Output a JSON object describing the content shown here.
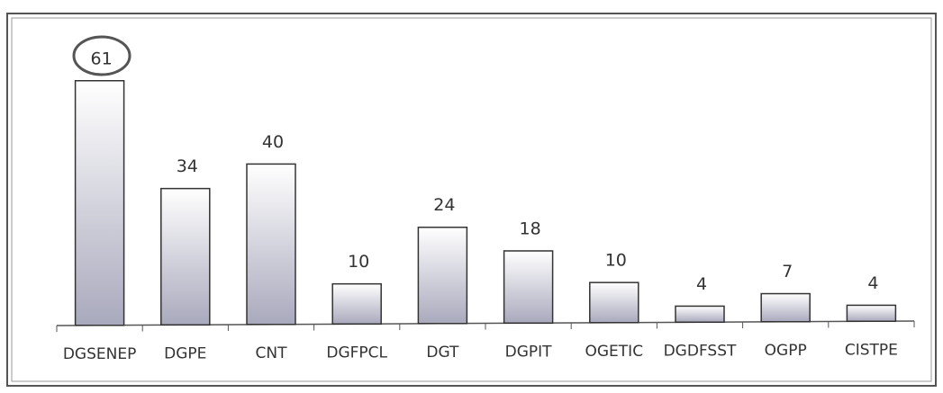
{
  "chart_data": {
    "type": "bar",
    "categories": [
      "DGSENEP",
      "DGPE",
      "CNT",
      "DGFPCL",
      "DGT",
      "DGPIT",
      "OGETIC",
      "DGDFSST",
      "OGPP",
      "CISTPE"
    ],
    "values": [
      61,
      34,
      40,
      10,
      24,
      18,
      10,
      4,
      7,
      4
    ],
    "color": "#a9a9bd"
  }
}
